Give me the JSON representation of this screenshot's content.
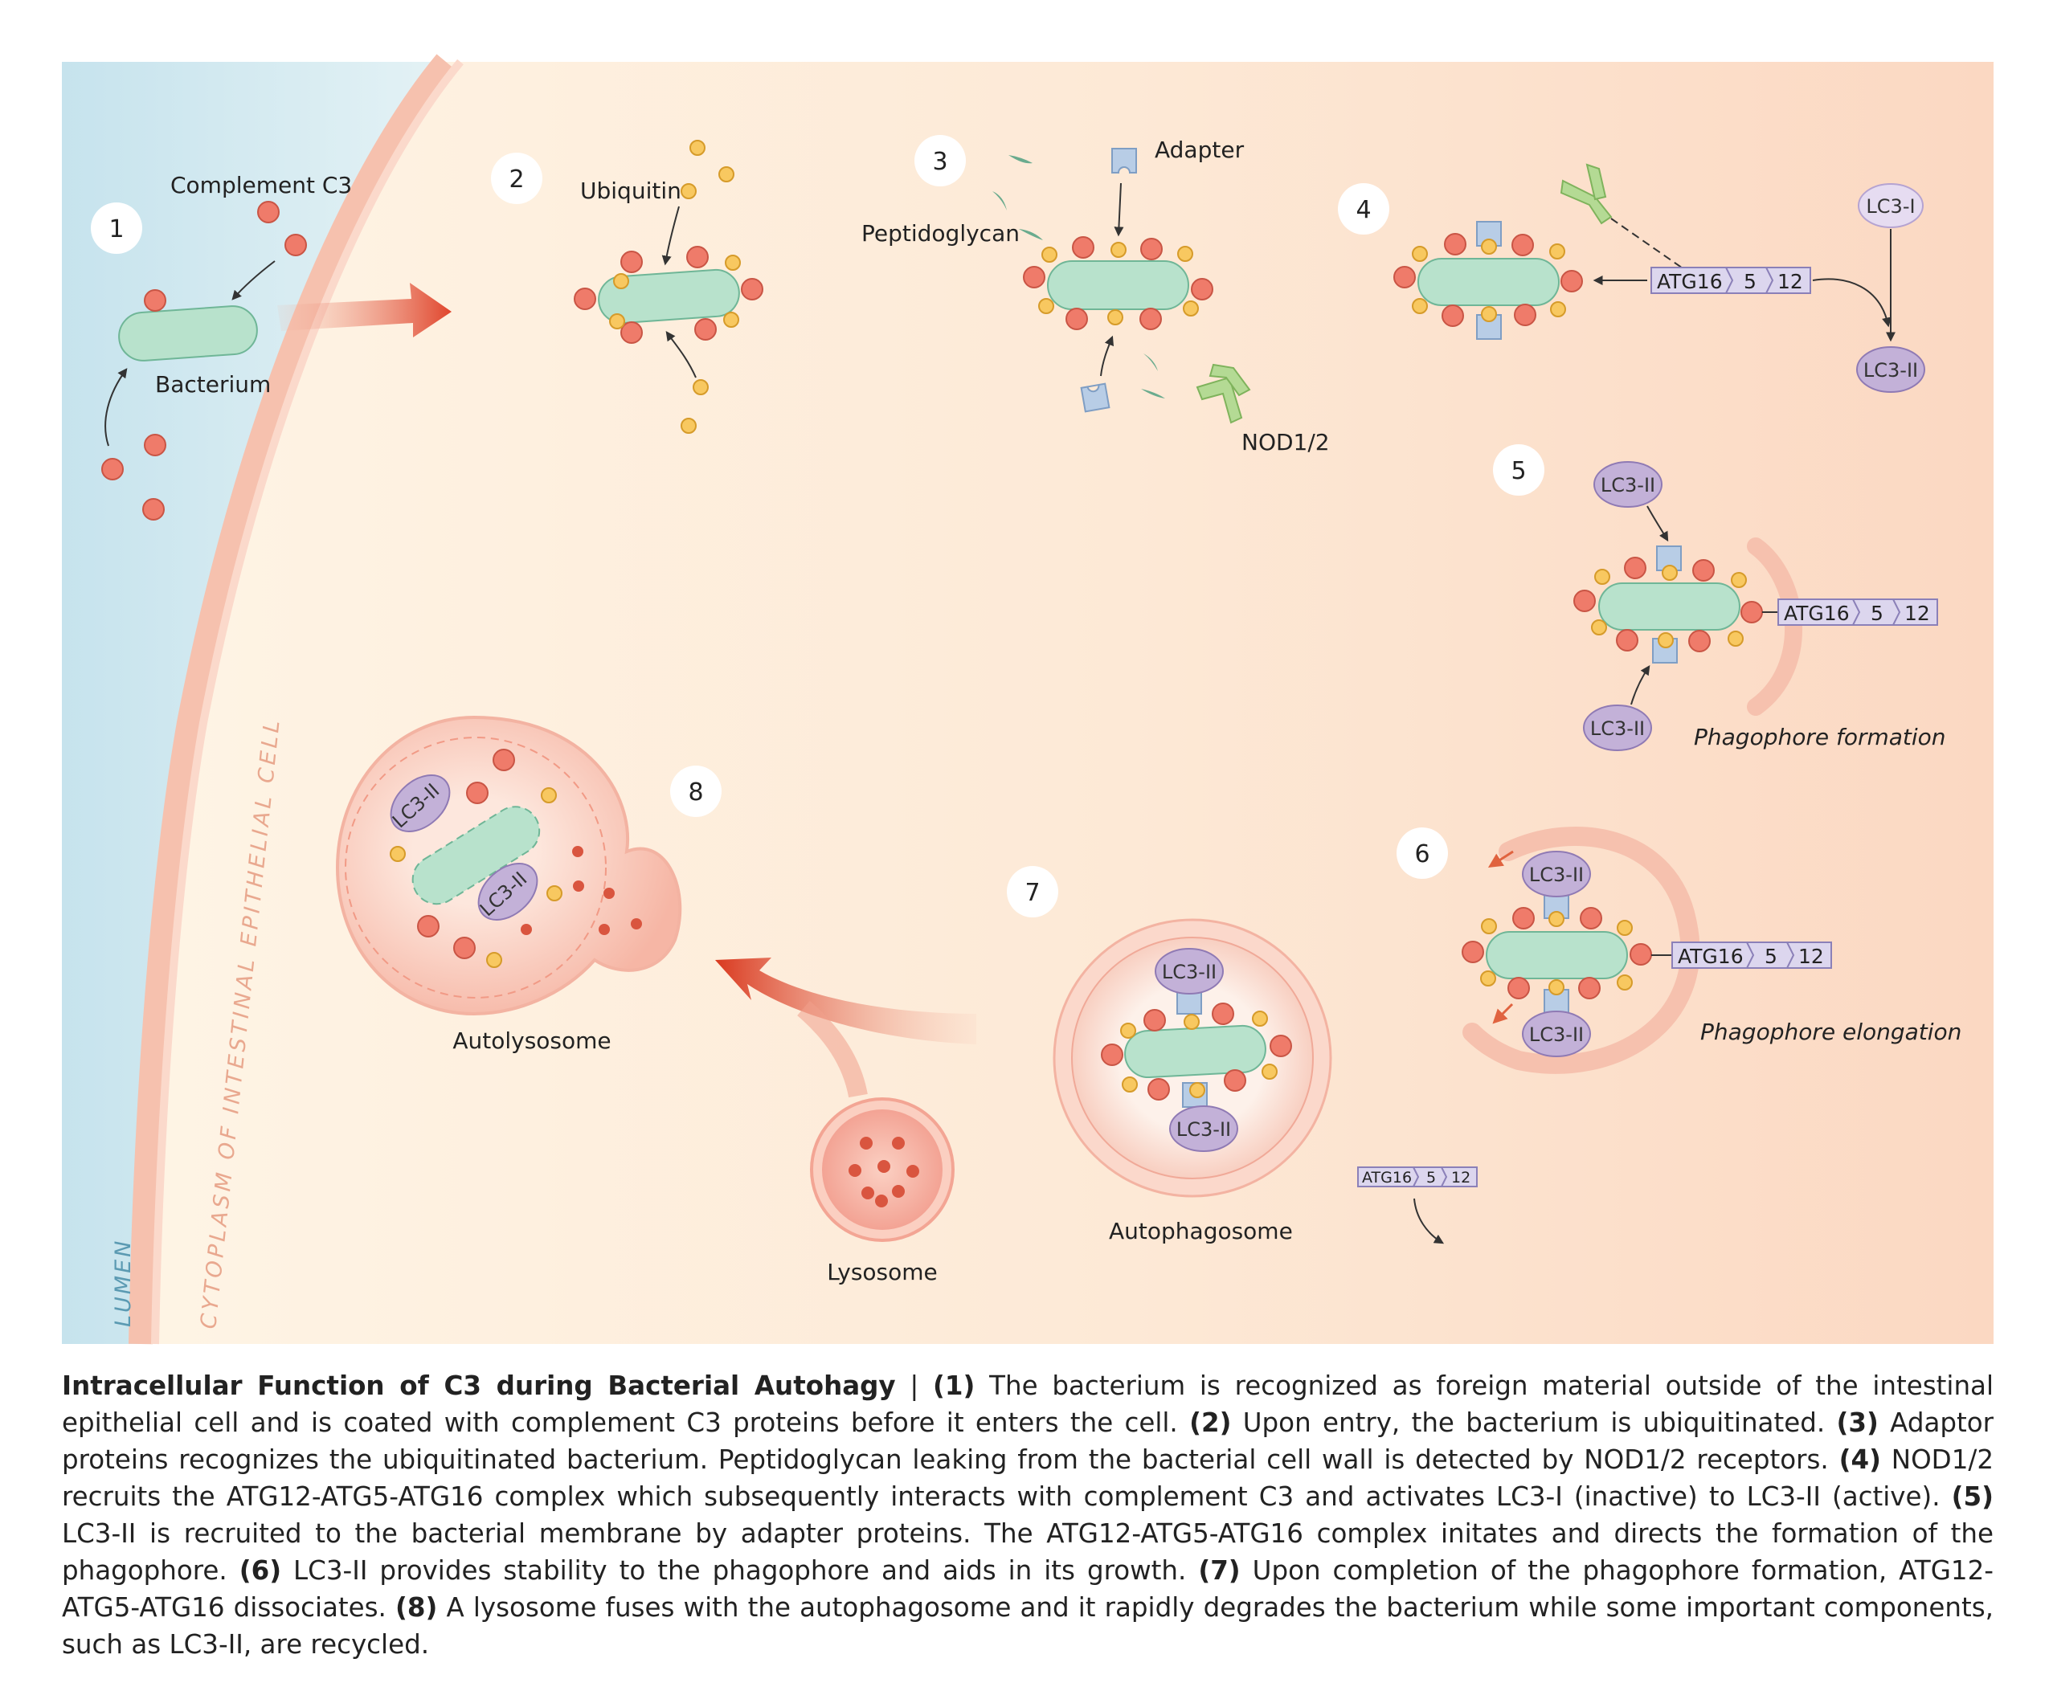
{
  "regions": {
    "lumen": "LUMEN",
    "cytoplasm": "CYTOPLASM OF INTESTINAL EPITHELIAL CELL"
  },
  "steps": [
    "1",
    "2",
    "3",
    "4",
    "5",
    "6",
    "7",
    "8"
  ],
  "labels": {
    "complement_c3": "Complement C3",
    "bacterium": "Bacterium",
    "ubiquitin": "Ubiquitin",
    "adapter": "Adapter",
    "peptidoglycan": "Peptidoglycan",
    "nod": "NOD1/2",
    "lc3_i": "LC3-I",
    "lc3_ii": "LC3-II",
    "atg16": "ATG16",
    "atg5": "5",
    "atg12": "12",
    "phagophore_formation": "Phagophore formation",
    "phagophore_elongation": "Phagophore elongation",
    "autophagosome": "Autophagosome",
    "lysosome": "Lysosome",
    "autolysosome": "Autolysosome"
  },
  "caption": {
    "title": "Intracellular Function of C3 during Bacterial Autohagy",
    "separator": " | ",
    "items": [
      {
        "num": "(1)",
        "text": " The bacterium is recognized as foreign material outside of the intestinal epithelial cell and is coated with complement C3 proteins before it enters the cell. "
      },
      {
        "num": "(2)",
        "text": " Upon entry, the bacterium is ubiquitinated. "
      },
      {
        "num": "(3)",
        "text": " Adaptor proteins recognizes the ubiquitinated bacterium. Peptidoglycan leaking from the bacterial cell wall is detected by NOD1/2 receptors. "
      },
      {
        "num": "(4)",
        "text": " NOD1/2 recruits the ATG12-ATG5-ATG16 complex which subsequently interacts with complement C3 and activates LC3-I (inactive) to LC3-II (active). "
      },
      {
        "num": "(5)",
        "text": " LC3-II is recruited to the bacterial membrane by adapter proteins. The ATG12-ATG5-ATG16 complex initates and directs the formation of the phagophore. "
      },
      {
        "num": "(6)",
        "text": " LC3-II  provides stability to the phagophore and aids in its growth. "
      },
      {
        "num": "(7)",
        "text": " Upon completion of the phagophore formation, ATG12-ATG5-ATG16 dissociates. "
      },
      {
        "num": "(8)",
        "text": " A lysosome fuses with the autophagosome and it rapidly degrades the bacterium while some important components, such as LC3-II, are recycled."
      }
    ]
  },
  "colors": {
    "bacterium_fill": "#b8e2cc",
    "bacterium_stroke": "#6fb697",
    "c3": "#ef7b6a",
    "ubiquitin": "#f8c860",
    "adapter": "#b8cde6",
    "nod": "#b4da94",
    "lc3": "#c3b1d8",
    "atg": "#dcd6ee",
    "arrow": "#e0452c",
    "lumen": "#cde7ef",
    "cytoplasm": "#fdecd8"
  }
}
